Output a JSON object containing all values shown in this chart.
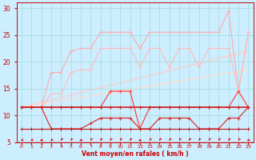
{
  "xlabel": "Vent moyen/en rafales ( km/h )",
  "bg_color": "#cceeff",
  "grid_color": "#aadddd",
  "xlim": [
    -0.5,
    23.5
  ],
  "ylim": [
    5,
    31
  ],
  "yticks": [
    5,
    10,
    15,
    20,
    25,
    30
  ],
  "xticks": [
    0,
    1,
    2,
    3,
    4,
    5,
    6,
    7,
    8,
    9,
    10,
    11,
    12,
    13,
    14,
    15,
    16,
    17,
    18,
    19,
    20,
    21,
    22,
    23
  ],
  "line_rafales_upper_color": "#ffaaaa",
  "line_rafales_upper_y": [
    11.5,
    11.5,
    11.5,
    18.0,
    18.0,
    22.0,
    22.5,
    22.5,
    25.5,
    25.5,
    25.5,
    25.5,
    22.5,
    25.5,
    25.5,
    25.5,
    25.5,
    25.5,
    25.5,
    25.5,
    25.5,
    29.5,
    14.5,
    25.5
  ],
  "line_rafales_mid_color": "#ffbbbb",
  "line_rafales_mid_y": [
    11.5,
    11.5,
    11.5,
    14.0,
    14.0,
    18.0,
    18.5,
    18.5,
    22.5,
    22.5,
    22.5,
    22.5,
    19.0,
    22.5,
    22.5,
    19.0,
    22.5,
    22.5,
    19.0,
    22.5,
    22.5,
    22.5,
    14.5,
    25.5
  ],
  "trend1_x": [
    0,
    23
  ],
  "trend1_y": [
    11.5,
    22.0
  ],
  "trend1_color": "#ffcccc",
  "trend2_x": [
    0,
    23
  ],
  "trend2_y": [
    11.5,
    18.5
  ],
  "trend2_color": "#ffddd0",
  "line_vent_upper_color": "#ff4444",
  "line_vent_upper_y": [
    11.5,
    11.5,
    11.5,
    11.5,
    11.5,
    11.5,
    11.5,
    11.5,
    11.5,
    14.5,
    14.5,
    14.5,
    7.5,
    11.5,
    11.5,
    11.5,
    11.5,
    11.5,
    11.5,
    11.5,
    11.5,
    11.5,
    14.5,
    11.5
  ],
  "line_vent_mid_color": "#cc2222",
  "line_vent_mid_y": [
    11.5,
    11.5,
    11.5,
    11.5,
    11.5,
    11.5,
    11.5,
    11.5,
    11.5,
    11.5,
    11.5,
    11.5,
    11.5,
    11.5,
    11.5,
    11.5,
    11.5,
    11.5,
    11.5,
    11.5,
    11.5,
    11.5,
    11.5,
    11.5
  ],
  "line_vent_lower_color": "#dd3333",
  "line_vent_lower_y": [
    11.5,
    11.5,
    11.5,
    7.5,
    7.5,
    7.5,
    7.5,
    8.5,
    9.5,
    9.5,
    9.5,
    9.5,
    7.5,
    7.5,
    9.5,
    9.5,
    9.5,
    9.5,
    7.5,
    7.5,
    7.5,
    9.5,
    9.5,
    11.5
  ],
  "line_vent_bottom_color": "#bb1111",
  "line_vent_bottom_y": [
    7.5,
    7.5,
    7.5,
    7.5,
    7.5,
    7.5,
    7.5,
    7.5,
    7.5,
    7.5,
    7.5,
    7.5,
    7.5,
    7.5,
    7.5,
    7.5,
    7.5,
    7.5,
    7.5,
    7.5,
    7.5,
    7.5,
    7.5,
    7.5
  ],
  "wind_angles_deg": [
    225,
    225,
    247,
    225,
    202,
    202,
    247,
    202,
    202,
    202,
    202,
    202,
    247,
    202,
    202,
    202,
    202,
    202,
    202,
    202,
    202,
    202,
    202,
    247
  ]
}
